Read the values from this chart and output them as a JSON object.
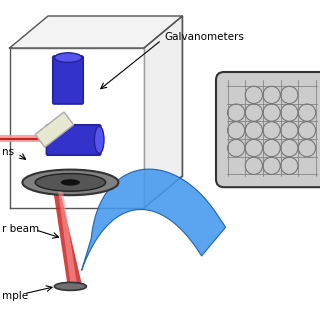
{
  "background_color": "#ffffff",
  "box_edge_color": "#555555",
  "galvo_color": "#3333cc",
  "galvo_dark": "#222299",
  "galvo_light": "#5555ee",
  "lens_color": "#808080",
  "beam_color": "#cc2222",
  "beam_light": "#ff9999",
  "sample_color": "#707070",
  "mirror_color": "#e8e8d0",
  "arrow_color": "#4499ee",
  "arrow_dark": "#1155aa",
  "inset_bg": "#cccccc",
  "inset_circle_color": "#777777",
  "inset_border": "#333333",
  "label_galvano": "Galvanometers",
  "label_lens": "ns",
  "label_beam": "r beam",
  "label_sample": "mple"
}
